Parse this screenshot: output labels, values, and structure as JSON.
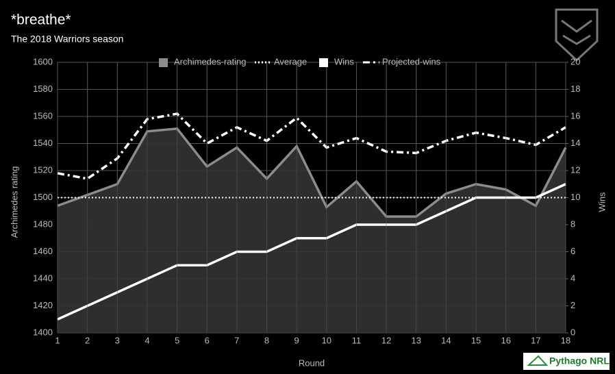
{
  "chart_data": {
    "type": "line",
    "title": "*breathe*",
    "subtitle": "The 2018 Warriors season",
    "brand": "Pythago NRL",
    "x_label": "Round",
    "y_label": "Archimedes rating",
    "y2_label": "Wins",
    "x": [
      1,
      2,
      3,
      4,
      5,
      6,
      7,
      8,
      9,
      10,
      11,
      12,
      13,
      14,
      15,
      16,
      17,
      18
    ],
    "xlim": [
      1,
      18
    ],
    "xticks": [
      1,
      2,
      3,
      4,
      5,
      6,
      7,
      8,
      9,
      10,
      11,
      12,
      13,
      14,
      15,
      16,
      17,
      18
    ],
    "ylim": [
      1400,
      1600
    ],
    "yticks": [
      1400,
      1420,
      1440,
      1460,
      1480,
      1500,
      1520,
      1540,
      1560,
      1580,
      1600
    ],
    "y2lim": [
      0,
      20
    ],
    "y2ticks": [
      0,
      2,
      4,
      6,
      8,
      10,
      12,
      14,
      16,
      18,
      20
    ],
    "grid": true,
    "legend": "top",
    "series": [
      {
        "name": "Archimedes-rating",
        "color": "#8c8c8c",
        "style": "area",
        "values": [
          1494,
          1502,
          1510,
          1549,
          1551,
          1523,
          1537,
          1514,
          1538,
          1493,
          1512,
          1486,
          1486,
          1503,
          1510,
          1506,
          1494,
          1537
        ]
      },
      {
        "name": "Average",
        "color": "#ffffff",
        "style": "dotted",
        "values": [
          1500,
          1500,
          1500,
          1500,
          1500,
          1500,
          1500,
          1500,
          1500,
          1500,
          1500,
          1500,
          1500,
          1500,
          1500,
          1500,
          1500,
          1500
        ]
      },
      {
        "name": "Wins",
        "color": "#ffffff",
        "style": "solid",
        "axis": "y2",
        "values": [
          1,
          2,
          3,
          4,
          5,
          5,
          6,
          6,
          7,
          7,
          8,
          8,
          8,
          9,
          10,
          10,
          10,
          11
        ]
      },
      {
        "name": "Projected-wins",
        "color": "#ffffff",
        "style": "dashdot",
        "axis": "y2",
        "values": [
          11.8,
          11.4,
          12.9,
          15.8,
          16.2,
          14.0,
          15.2,
          14.2,
          15.9,
          13.7,
          14.4,
          13.4,
          13.3,
          14.2,
          14.8,
          14.4,
          13.9,
          15.2
        ]
      }
    ]
  }
}
